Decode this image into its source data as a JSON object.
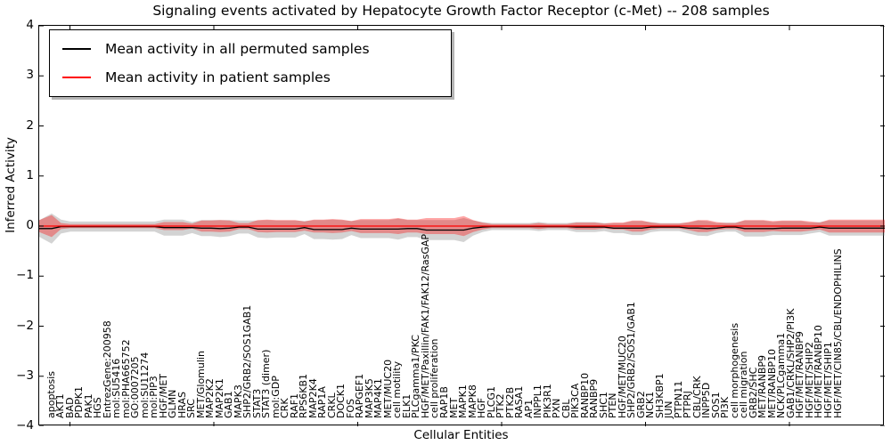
{
  "title": "Signaling events activated by Hepatocyte Growth Factor Receptor (c-Met) -- 208 samples",
  "legend": {
    "entries": [
      {
        "label": "Mean activity in all permuted samples",
        "color": "#000000"
      },
      {
        "label": "Mean activity in patient samples",
        "color": "#ff0000"
      }
    ]
  },
  "axes": {
    "xlabel": "Cellular Entities",
    "ylabel": "Inferred Activity",
    "yticklabels": [
      "4",
      "3",
      "2",
      "1",
      "0",
      "−1",
      "−2",
      "−3",
      "−4"
    ]
  },
  "chart_data": {
    "type": "line",
    "title": "Signaling events activated by Hepatocyte Growth Factor Receptor (c-Met) -- 208 samples",
    "xlabel": "Cellular Entities",
    "ylabel": "Inferred Activity",
    "ylim": [
      -4,
      4
    ],
    "yticks": [
      4,
      3,
      2,
      1,
      0,
      -1,
      -2,
      -3,
      -4
    ],
    "grid": false,
    "legend_position": "upper left",
    "zero_reference_line": 0,
    "colors": {
      "permuted_line": "#000000",
      "patient_line": "#ff0000",
      "permuted_band_fill": "rgba(128,128,128,0.35)",
      "patient_band_fill": "rgba(255,0,0,0.35)"
    },
    "categories": [
      "apoptosis",
      "AKT1",
      "BAD",
      "PDPK1",
      "PAK1",
      "HGS",
      "EntrezGene:200958",
      "mol:SU5416",
      "mol:PHA665752",
      "GO:0007205",
      "mol:SU11274",
      "mol:PIP3",
      "HGF/MET",
      "GLMN",
      "HRAS",
      "SRC",
      "MET/Glomulin",
      "MAP2K2",
      "MAP2K1",
      "GAB1",
      "MAPK3",
      "SHP2/GRB2/SOS1GAB1",
      "STAT3",
      "STAT3 (dimer)",
      "mol:GDP",
      "CRK",
      "RAF1",
      "RPS6KB1",
      "MAP2K4",
      "RAP1A",
      "CRKL",
      "DOCK1",
      "FOS",
      "RAPGEF1",
      "MAP3K5",
      "MAP4K1",
      "MET/MUC20",
      "cell motility",
      "ELK1",
      "PLCgamma1/PKC",
      "HGF/MET/Paxillin/FAK1/FAK12/RasGAP",
      "cell proliferation",
      "RAP1B",
      "MET",
      "MAPK1",
      "MAPK8",
      "HGF",
      "PLCG1",
      "PTK2",
      "PTK2B",
      "RASA1",
      "AP1",
      "INPPL1",
      "PIK3R1",
      "PXN",
      "CBL",
      "PIK3CA",
      "RANBP10",
      "RANBP9",
      "SHC1",
      "PTEN",
      "HGF/MET/MUC20",
      "SHP2/GRB2/SOS1/GAB1",
      "GRB2",
      "NCK1",
      "SH3KBP1",
      "JUN",
      "PTPN11",
      "PTPRJ",
      "CBL/CRK",
      "INPP5D",
      "SOS1",
      "PI3K",
      "cell morphogenesis",
      "cell migration",
      "GRB2/SHC",
      "MET/RANBP9",
      "MET/RANBP10",
      "NCK/PLCgamma1",
      "GAB1/CRKL/SHP2/PI3K",
      "HGF/MET/RANBP9",
      "HGF/MET/SHIP2",
      "HGF/MET/RANBP10",
      "HGF/MET/SHIP1",
      "HGF/MET/CIN85/CBL/ENDOPHILINS"
    ],
    "series": [
      {
        "name": "Mean activity in all permuted samples",
        "role": "permuted_mean",
        "color": "#000000",
        "values": [
          -0.05,
          -0.01,
          -0.01,
          -0.01,
          -0.01,
          -0.01,
          -0.01,
          -0.01,
          -0.01,
          -0.01,
          -0.01,
          -0.01,
          -0.03,
          -0.03,
          -0.03,
          -0.03,
          -0.04,
          -0.04,
          -0.05,
          -0.04,
          -0.02,
          -0.02,
          -0.06,
          -0.06,
          -0.06,
          -0.06,
          -0.06,
          -0.03,
          -0.07,
          -0.07,
          -0.07,
          -0.07,
          -0.04,
          -0.06,
          -0.06,
          -0.06,
          -0.06,
          -0.06,
          -0.05,
          -0.05,
          -0.08,
          -0.08,
          -0.08,
          -0.08,
          -0.08,
          -0.04,
          -0.02,
          -0.01,
          -0.01,
          -0.01,
          -0.01,
          -0.01,
          -0.01,
          -0.01,
          -0.01,
          -0.01,
          -0.02,
          -0.02,
          -0.02,
          -0.02,
          -0.04,
          -0.04,
          -0.04,
          -0.04,
          -0.02,
          -0.02,
          -0.02,
          -0.02,
          -0.04,
          -0.04,
          -0.05,
          -0.04,
          -0.02,
          -0.02,
          -0.05,
          -0.05,
          -0.05,
          -0.05,
          -0.04,
          -0.04,
          -0.04,
          -0.04,
          -0.02,
          -0.04,
          -0.04
        ]
      },
      {
        "name": "Mean activity in patient samples",
        "role": "patient_mean",
        "color": "#ff0000",
        "values": [
          0,
          0,
          0,
          0,
          0,
          0,
          0,
          0,
          0,
          0,
          0,
          0,
          0,
          0,
          0,
          0,
          0,
          0,
          0,
          0,
          0,
          0,
          0,
          0,
          0,
          0,
          0,
          0,
          0,
          0,
          0,
          0,
          0,
          0,
          0,
          0,
          0,
          0,
          0,
          0,
          0,
          0,
          0,
          0,
          0,
          0,
          0,
          0,
          0,
          0,
          0,
          0,
          0,
          0,
          0,
          0,
          0,
          0,
          0,
          0,
          0,
          0,
          0,
          0,
          0,
          0,
          0,
          0,
          0,
          0,
          0,
          0,
          0,
          0,
          0,
          0,
          0,
          0,
          0,
          0,
          0,
          0,
          0,
          0,
          0
        ]
      },
      {
        "name": "Permuted samples band half-width",
        "role": "permuted_band_half_width",
        "color": "rgba(128,128,128,0.35)",
        "values": [
          0.3,
          0.14,
          0.1,
          0.1,
          0.1,
          0.1,
          0.1,
          0.1,
          0.1,
          0.1,
          0.1,
          0.1,
          0.16,
          0.16,
          0.16,
          0.11,
          0.16,
          0.16,
          0.17,
          0.16,
          0.13,
          0.13,
          0.17,
          0.18,
          0.17,
          0.17,
          0.17,
          0.13,
          0.19,
          0.19,
          0.2,
          0.19,
          0.14,
          0.18,
          0.18,
          0.18,
          0.18,
          0.21,
          0.17,
          0.17,
          0.2,
          0.2,
          0.2,
          0.2,
          0.24,
          0.15,
          0.1,
          0.07,
          0.07,
          0.07,
          0.07,
          0.07,
          0.09,
          0.07,
          0.07,
          0.07,
          0.1,
          0.1,
          0.1,
          0.08,
          0.1,
          0.1,
          0.14,
          0.14,
          0.1,
          0.08,
          0.08,
          0.08,
          0.11,
          0.15,
          0.15,
          0.1,
          0.09,
          0.09,
          0.16,
          0.16,
          0.16,
          0.13,
          0.14,
          0.14,
          0.14,
          0.11,
          0.1,
          0.15,
          0.15
        ]
      },
      {
        "name": "Patient samples band half-width",
        "role": "patient_band_half_width",
        "color": "rgba(255,0,0,0.35)",
        "values": [
          0.22,
          0.06,
          0.04,
          0.04,
          0.04,
          0.04,
          0.04,
          0.04,
          0.04,
          0.04,
          0.04,
          0.04,
          0.08,
          0.08,
          0.08,
          0.05,
          0.11,
          0.11,
          0.12,
          0.11,
          0.06,
          0.06,
          0.12,
          0.13,
          0.12,
          0.12,
          0.12,
          0.09,
          0.13,
          0.13,
          0.14,
          0.13,
          0.1,
          0.14,
          0.14,
          0.14,
          0.14,
          0.16,
          0.13,
          0.13,
          0.16,
          0.16,
          0.16,
          0.16,
          0.2,
          0.12,
          0.07,
          0.04,
          0.04,
          0.04,
          0.04,
          0.04,
          0.06,
          0.04,
          0.04,
          0.04,
          0.07,
          0.07,
          0.07,
          0.05,
          0.07,
          0.07,
          0.11,
          0.11,
          0.07,
          0.05,
          0.05,
          0.05,
          0.08,
          0.12,
          0.12,
          0.08,
          0.06,
          0.06,
          0.12,
          0.12,
          0.12,
          0.1,
          0.11,
          0.11,
          0.11,
          0.09,
          0.07,
          0.13,
          0.13
        ]
      }
    ]
  }
}
